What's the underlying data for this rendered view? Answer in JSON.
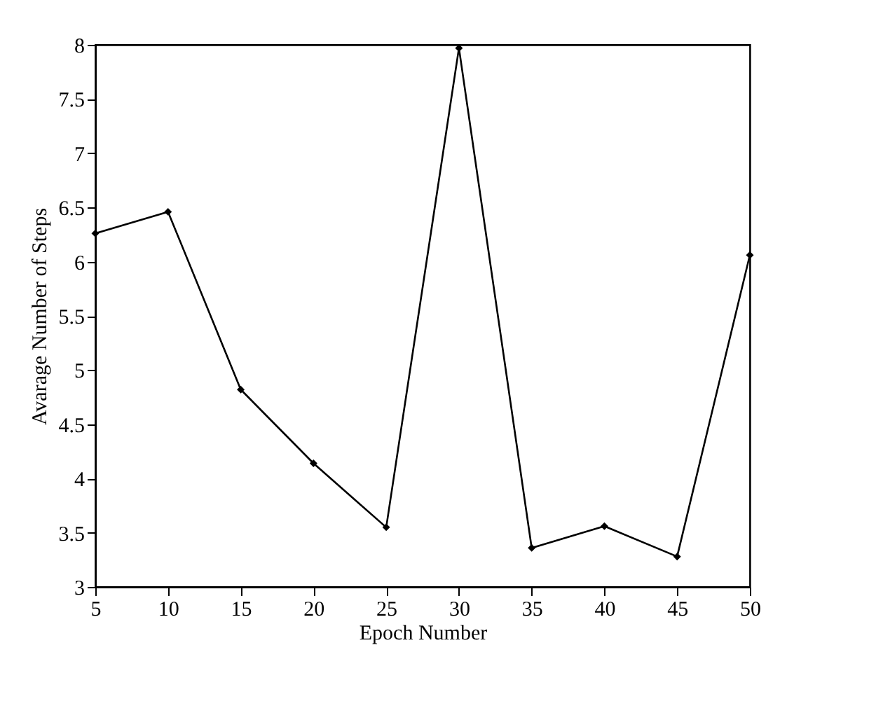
{
  "chart_data": {
    "type": "line",
    "xlabel": "Epoch Number",
    "ylabel": "Avarage Number of Steps",
    "x": [
      5,
      10,
      15,
      20,
      25,
      30,
      35,
      40,
      45,
      50
    ],
    "series": [
      {
        "color": "#000000",
        "values": [
          6.26,
          6.46,
          4.82,
          4.14,
          3.55,
          7.97,
          3.36,
          3.56,
          3.28,
          6.06
        ]
      }
    ],
    "xlim": [
      5,
      50
    ],
    "xticks": [
      5,
      10,
      15,
      20,
      25,
      30,
      35,
      40,
      45,
      50
    ],
    "ylim": [
      3,
      8
    ],
    "yticks": [
      3,
      3.5,
      4,
      4.5,
      5,
      5.5,
      6,
      6.5,
      7,
      7.5,
      8
    ],
    "grid": false,
    "legend": false,
    "marker": "diamond",
    "line_style": "solid"
  }
}
